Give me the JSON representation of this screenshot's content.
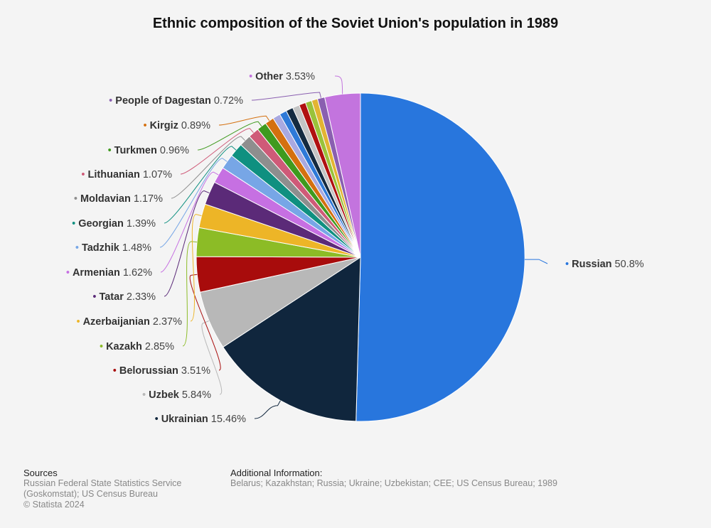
{
  "chart_data": {
    "type": "pie",
    "title": "Ethnic composition of the Soviet Union's population in 1989",
    "unit": "%",
    "slices": [
      {
        "name": "Russian",
        "value": 50.8,
        "label": "50.8%",
        "color": "#2876dd"
      },
      {
        "name": "Ukrainian",
        "value": 15.46,
        "label": "15.46%",
        "color": "#10263d"
      },
      {
        "name": "Uzbek",
        "value": 5.84,
        "label": "5.84%",
        "color": "#b8b8b8"
      },
      {
        "name": "Belorussian",
        "value": 3.51,
        "label": "3.51%",
        "color": "#a80c0c"
      },
      {
        "name": "Kazakh",
        "value": 2.85,
        "label": "2.85%",
        "color": "#8cbc26"
      },
      {
        "name": "Azerbaijanian",
        "value": 2.37,
        "label": "2.37%",
        "color": "#edb527"
      },
      {
        "name": "Tatar",
        "value": 2.33,
        "label": "2.33%",
        "color": "#5b2a78"
      },
      {
        "name": "Armenian",
        "value": 1.62,
        "label": "1.62%",
        "color": "#c670e2"
      },
      {
        "name": "Tadzhik",
        "value": 1.48,
        "label": "1.48%",
        "color": "#77a6e6"
      },
      {
        "name": "Georgian",
        "value": 1.39,
        "label": "1.39%",
        "color": "#0f9080"
      },
      {
        "name": "Moldavian",
        "value": 1.17,
        "label": "1.17%",
        "color": "#8e8e8e"
      },
      {
        "name": "Lithuanian",
        "value": 1.07,
        "label": "1.07%",
        "color": "#cf5a78"
      },
      {
        "name": "Turkmen",
        "value": 0.96,
        "label": "0.96%",
        "color": "#3f9a1e"
      },
      {
        "name": "Kirgiz",
        "value": 0.89,
        "label": "0.89%",
        "color": "#d4700f"
      },
      {
        "name": "",
        "value": 0.75,
        "color": "#a9a9e0"
      },
      {
        "name": "",
        "value": 0.72,
        "color": "#2f7ad8"
      },
      {
        "name": "",
        "value": 0.7,
        "color": "#142a40"
      },
      {
        "name": "",
        "value": 0.68,
        "color": "#c4c4c4"
      },
      {
        "name": "",
        "value": 0.66,
        "color": "#b01010"
      },
      {
        "name": "",
        "value": 0.63,
        "color": "#9ac23a"
      },
      {
        "name": "",
        "value": 0.6,
        "color": "#e3b432"
      },
      {
        "name": "People of Dagestan",
        "value": 0.72,
        "label": "0.72%",
        "color": "#8a5fb0"
      },
      {
        "name": "Other",
        "value": 3.53,
        "label": "3.53%",
        "color": "#c374de"
      }
    ]
  },
  "sources": {
    "heading": "Sources",
    "lines": [
      "Russian Federal State Statistics Service",
      "(Goskomstat); US Census Bureau",
      "© Statista 2024"
    ]
  },
  "additional_info": {
    "heading": "Additional Information:",
    "text": "Belarus; Kazakhstan; Russia; Ukraine; Uzbekistan; CEE; US Census Bureau; 1989"
  }
}
